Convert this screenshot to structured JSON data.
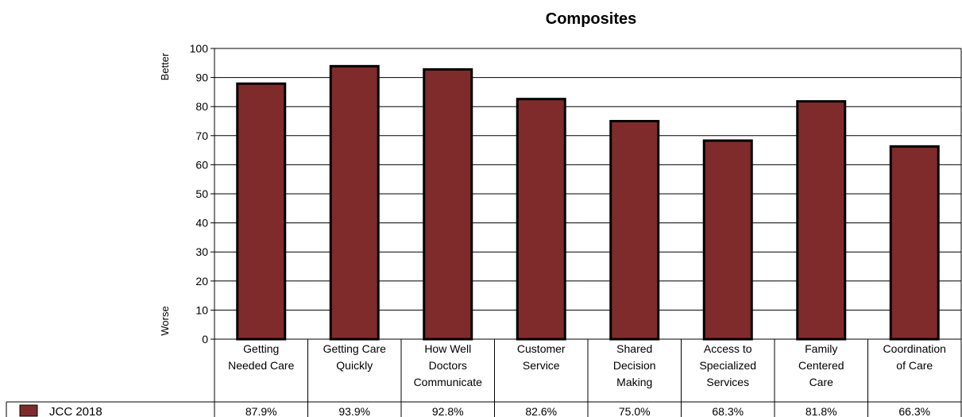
{
  "chart_data": {
    "type": "bar",
    "title": "Composites",
    "y_axis_top_label": "Better",
    "y_axis_bottom_label": "Worse",
    "ylim": [
      0,
      100
    ],
    "yticks": [
      0,
      10,
      20,
      30,
      40,
      50,
      60,
      70,
      80,
      90,
      100
    ],
    "grid": true,
    "categories": [
      [
        "Getting",
        "Needed Care"
      ],
      [
        "Getting Care",
        "Quickly"
      ],
      [
        "How Well",
        "Doctors",
        "Communicate"
      ],
      [
        "Customer",
        "Service"
      ],
      [
        "Shared",
        "Decision",
        "Making"
      ],
      [
        "Access to",
        "Specialized",
        "Services"
      ],
      [
        "Family",
        "Centered",
        "Care"
      ],
      [
        "Coordination",
        "of Care"
      ]
    ],
    "series": [
      {
        "name": "JCC 2018",
        "color": "#7f2b2b",
        "values": [
          87.9,
          93.9,
          92.8,
          82.6,
          75.0,
          68.3,
          81.8,
          66.3
        ],
        "value_labels": [
          "87.9%",
          "93.9%",
          "92.8%",
          "82.6%",
          "75.0%",
          "68.3%",
          "81.8%",
          "66.3%"
        ]
      }
    ]
  }
}
